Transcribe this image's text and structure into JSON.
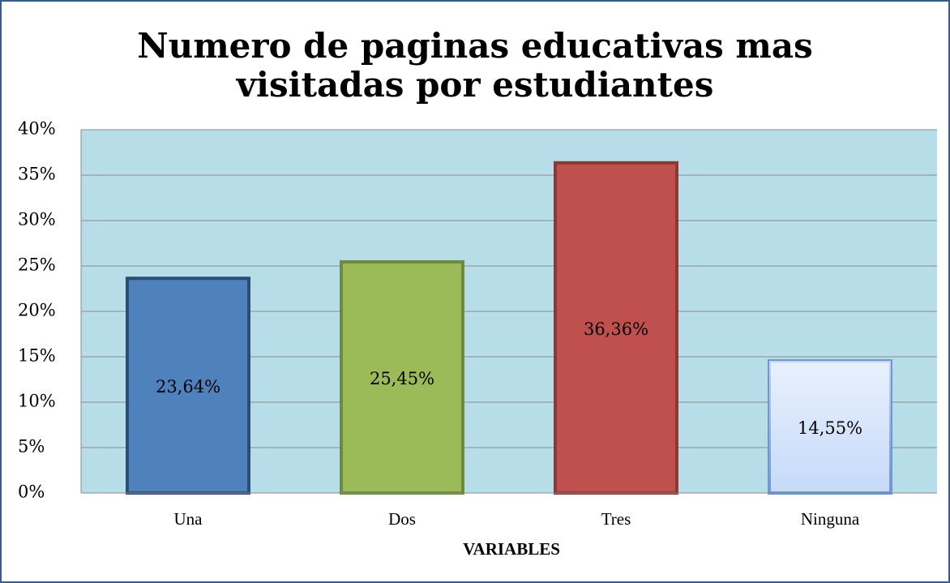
{
  "chart_data": {
    "type": "bar",
    "title": "Numero de paginas educativas mas visitadas por estudiantes",
    "title_lines": [
      "Numero de paginas educativas mas",
      "visitadas por estudiantes"
    ],
    "x_label": "VARIABLES",
    "categories": [
      "Una",
      "Dos",
      "Tres",
      "Ninguna"
    ],
    "values": [
      23.64,
      25.45,
      36.36,
      14.55
    ],
    "value_labels": [
      "23,64%",
      "25,45%",
      "36,36%",
      "14,55%"
    ],
    "colors": [
      "#4f81bd",
      "#9bbb59",
      "#c0504d",
      "#c6dafa"
    ],
    "edge_colors": [
      "#2c4d75",
      "#6e8b3d",
      "#8c3836",
      "#6f97d3"
    ],
    "ylim": [
      0,
      40
    ],
    "yticks": [
      {
        "value": 0,
        "label": "0%"
      },
      {
        "value": 5,
        "label": "5%"
      },
      {
        "value": 10,
        "label": "10%"
      },
      {
        "value": 15,
        "label": "15%"
      },
      {
        "value": 20,
        "label": "20%"
      },
      {
        "value": 25,
        "label": "25%"
      },
      {
        "value": 30,
        "label": "30%"
      },
      {
        "value": 35,
        "label": "35%"
      },
      {
        "value": 40,
        "label": "40%"
      }
    ],
    "grid": true
  }
}
